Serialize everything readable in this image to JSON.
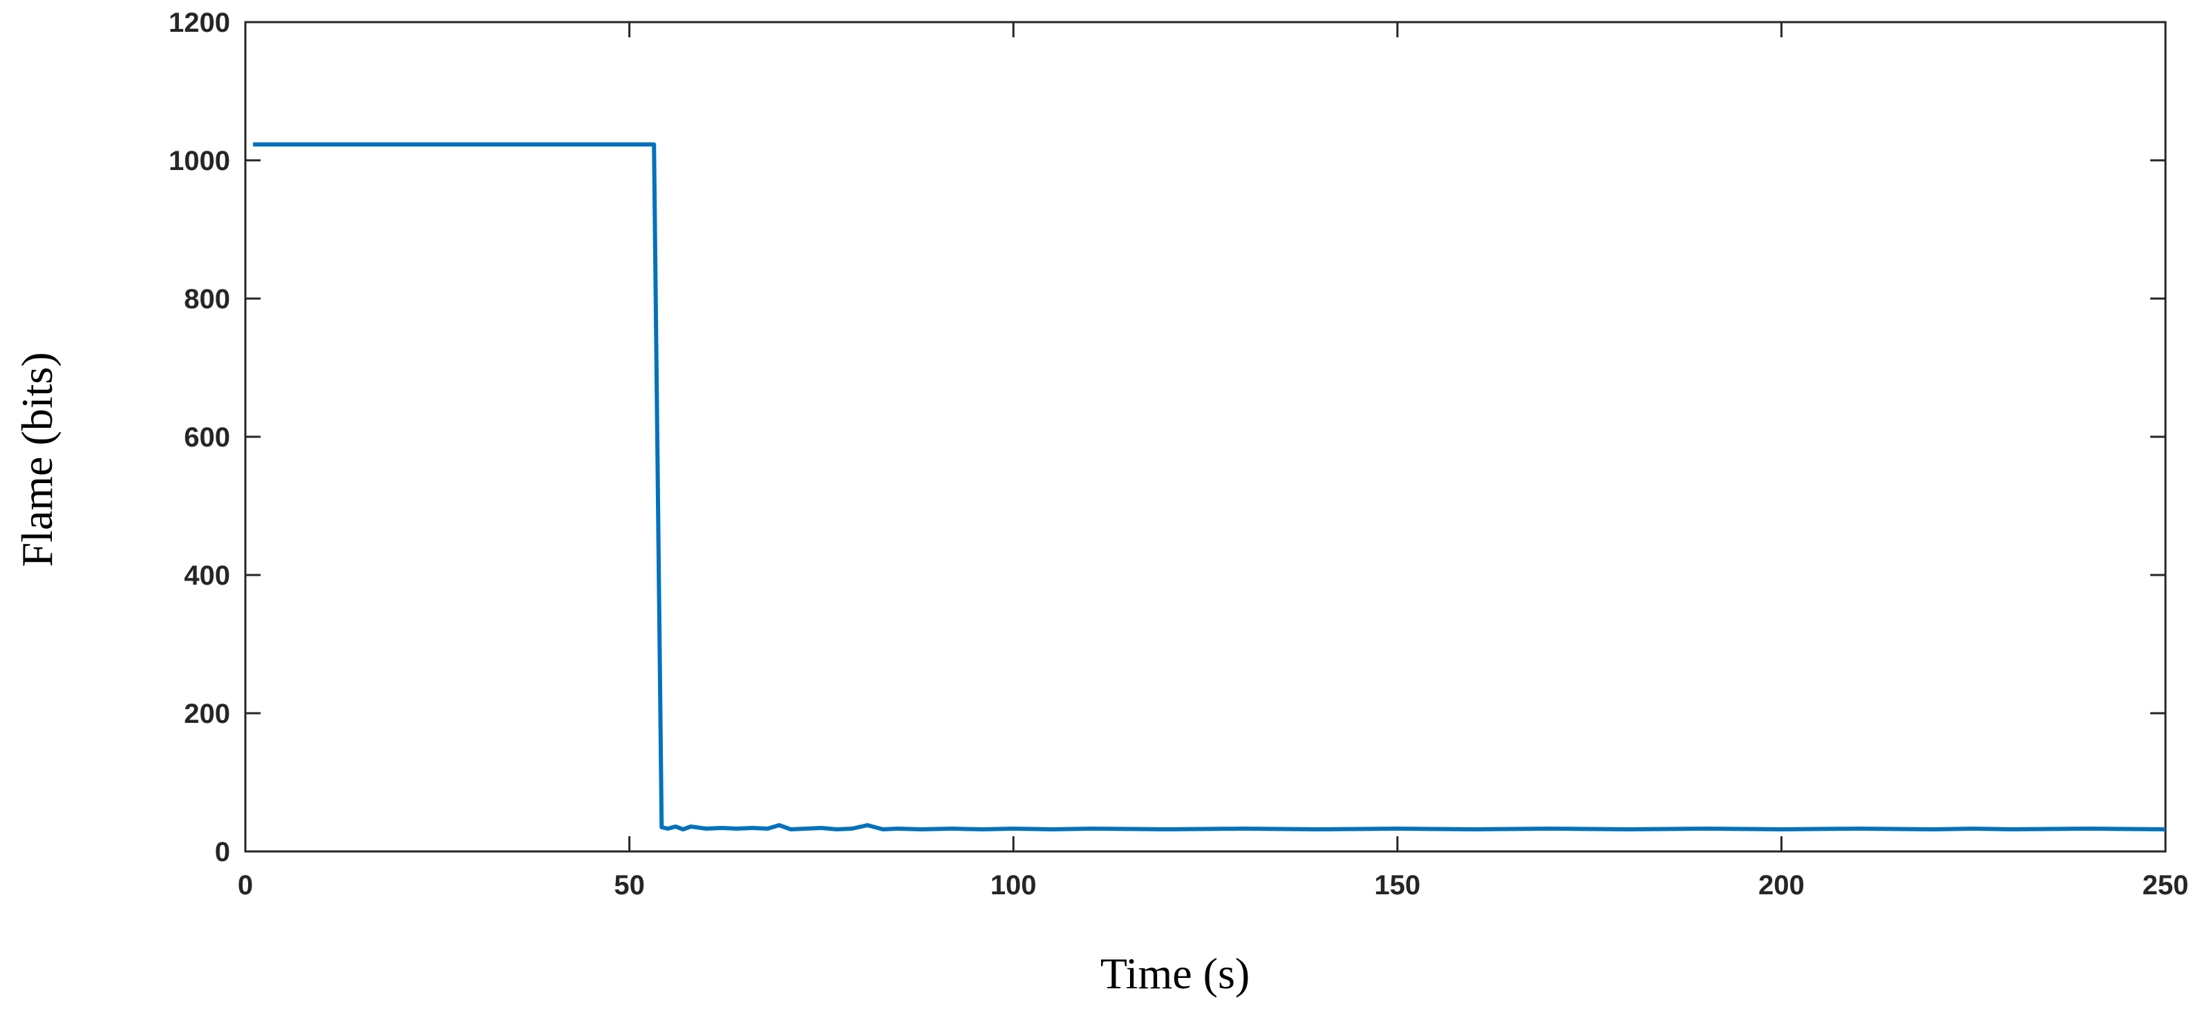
{
  "chart_data": {
    "type": "line",
    "title": "",
    "xlabel": "Time (s)",
    "ylabel": "Flame (bits)",
    "xlim": [
      0,
      250
    ],
    "ylim": [
      0,
      1200
    ],
    "xticks": [
      0,
      50,
      100,
      150,
      200,
      250
    ],
    "yticks": [
      0,
      200,
      400,
      600,
      800,
      1000,
      1200
    ],
    "grid": false,
    "line_color": "#0072BD",
    "series": [
      {
        "x": [
          1,
          10,
          20,
          30,
          40,
          50,
          53.2,
          54.2,
          55,
          56,
          57,
          58,
          60,
          62,
          64,
          66,
          68,
          69.5,
          71,
          73,
          75,
          77,
          79,
          81,
          83,
          85,
          88,
          92,
          96,
          100,
          105,
          110,
          120,
          130,
          140,
          150,
          160,
          170,
          180,
          190,
          200,
          210,
          220,
          225,
          230,
          240,
          250
        ],
        "y": [
          1023,
          1023,
          1023,
          1023,
          1023,
          1023,
          1023,
          35,
          33,
          36,
          32,
          36,
          33,
          34,
          33,
          34,
          33,
          38,
          32,
          33,
          34,
          32,
          33,
          38,
          32,
          33,
          32,
          33,
          32,
          33,
          32,
          33,
          32,
          33,
          32,
          33,
          32,
          33,
          32,
          33,
          32,
          33,
          32,
          33,
          32,
          33,
          32
        ]
      }
    ]
  }
}
